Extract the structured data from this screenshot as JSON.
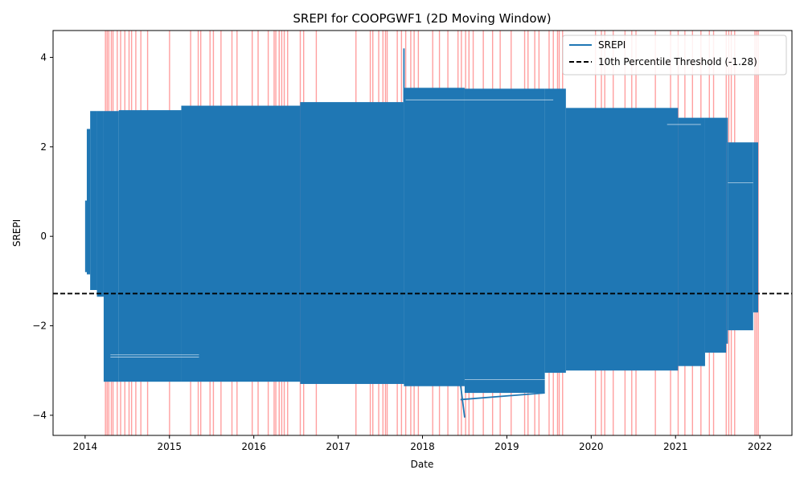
{
  "chart_data": {
    "type": "line",
    "title": "SREPI for COOPGWF1 (2D Moving Window)",
    "xlabel": "Date",
    "ylabel": "SREPI",
    "xlim": [
      2013.62,
      2022.38
    ],
    "ylim": [
      -4.45,
      4.6
    ],
    "x_ticks": [
      2014,
      2015,
      2016,
      2017,
      2018,
      2019,
      2020,
      2021,
      2022
    ],
    "x_tick_labels": [
      "2014",
      "2015",
      "2016",
      "2017",
      "2018",
      "2019",
      "2020",
      "2021",
      "2022"
    ],
    "y_ticks": [
      -4,
      -2,
      0,
      2,
      4
    ],
    "y_tick_labels": [
      "−4",
      "−2",
      "0",
      "2",
      "4"
    ],
    "grid": false,
    "legend": {
      "placement": "top-right",
      "entries": [
        "SREPI",
        "10th Percentile Threshold (-1.28)"
      ]
    },
    "threshold": {
      "y": -1.28,
      "color": "#000000",
      "style": "dashed"
    },
    "drought_shading": {
      "color": "#ff7f7f",
      "dates": [
        2014.24,
        2014.26,
        2014.28,
        2014.31,
        2014.33,
        2014.38,
        2014.42,
        2014.47,
        2014.52,
        2014.55,
        2014.6,
        2014.66,
        2014.74,
        2015.0,
        2015.25,
        2015.34,
        2015.37,
        2015.48,
        2015.52,
        2015.61,
        2015.74,
        2015.8,
        2015.98,
        2016.05,
        2016.17,
        2016.24,
        2016.26,
        2016.3,
        2016.33,
        2016.36,
        2016.4,
        2016.55,
        2016.59,
        2016.74,
        2017.21,
        2017.38,
        2017.41,
        2017.48,
        2017.53,
        2017.56,
        2017.58,
        2017.7,
        2017.75,
        2017.8,
        2017.86,
        2017.9,
        2017.95,
        2018.12,
        2018.2,
        2018.3,
        2018.42,
        2018.46,
        2018.51,
        2018.55,
        2018.6,
        2018.72,
        2018.83,
        2018.92,
        2019.05,
        2019.21,
        2019.25,
        2019.33,
        2019.38,
        2019.5,
        2019.55,
        2019.6,
        2019.62,
        2019.66,
        2020.05,
        2020.12,
        2020.16,
        2020.26,
        2020.4,
        2020.48,
        2020.53,
        2020.76,
        2020.94,
        2021.03,
        2021.11,
        2021.2,
        2021.3,
        2021.4,
        2021.45,
        2021.6,
        2021.63,
        2021.66,
        2021.7,
        2021.94,
        2021.96,
        2021.98
      ]
    },
    "series": [
      {
        "name": "SREPI",
        "color": "#1f77b4",
        "style": "solid",
        "bands": [
          {
            "x": [
              2014.0,
              2014.02
            ],
            "y": [
              -0.8,
              0.8
            ]
          },
          {
            "x": [
              2014.02,
              2014.06
            ],
            "y": [
              -0.85,
              2.4
            ]
          },
          {
            "x": [
              2014.06,
              2014.14
            ],
            "y": [
              -1.2,
              2.8
            ]
          },
          {
            "x": [
              2014.14,
              2014.22
            ],
            "y": [
              -1.35,
              2.8
            ]
          },
          {
            "x": [
              2014.22,
              2014.4
            ],
            "y": [
              -3.25,
              2.8
            ]
          },
          {
            "x": [
              2014.4,
              2015.14
            ],
            "y": [
              -3.25,
              2.82
            ]
          },
          {
            "x": [
              2015.14,
              2016.55
            ],
            "y": [
              -3.25,
              2.92
            ]
          },
          {
            "x": [
              2016.55,
              2017.78
            ],
            "y": [
              -3.3,
              3.0
            ]
          },
          {
            "x": [
              2017.78,
              2018.5
            ],
            "y": [
              -3.35,
              3.32
            ]
          },
          {
            "x": [
              2018.5,
              2019.45
            ],
            "y": [
              -3.5,
              3.3
            ]
          },
          {
            "x": [
              2019.45,
              2019.7
            ],
            "y": [
              -3.05,
              3.3
            ]
          },
          {
            "x": [
              2019.7,
              2021.03
            ],
            "y": [
              -3.0,
              2.87
            ]
          },
          {
            "x": [
              2021.03,
              2021.35
            ],
            "y": [
              -2.9,
              2.65
            ]
          },
          {
            "x": [
              2021.35,
              2021.6
            ],
            "y": [
              -2.6,
              2.65
            ]
          },
          {
            "x": [
              2021.6,
              2021.62
            ],
            "y": [
              -2.4,
              2.65
            ]
          },
          {
            "x": [
              2021.62,
              2021.92
            ],
            "y": [
              -2.1,
              2.1
            ]
          },
          {
            "x": [
              2021.92,
              2021.98
            ],
            "y": [
              -1.7,
              2.1
            ]
          }
        ],
        "spikes": [
          {
            "x": [
              2017.78,
              2017.78
            ],
            "y": [
              3.0,
              4.2
            ]
          },
          {
            "x": [
              2018.45,
              2018.5
            ],
            "y": [
              -3.3,
              -4.05
            ]
          },
          {
            "x": [
              2018.45,
              2019.45
            ],
            "y": [
              -3.65,
              -3.5
            ]
          }
        ]
      }
    ]
  }
}
